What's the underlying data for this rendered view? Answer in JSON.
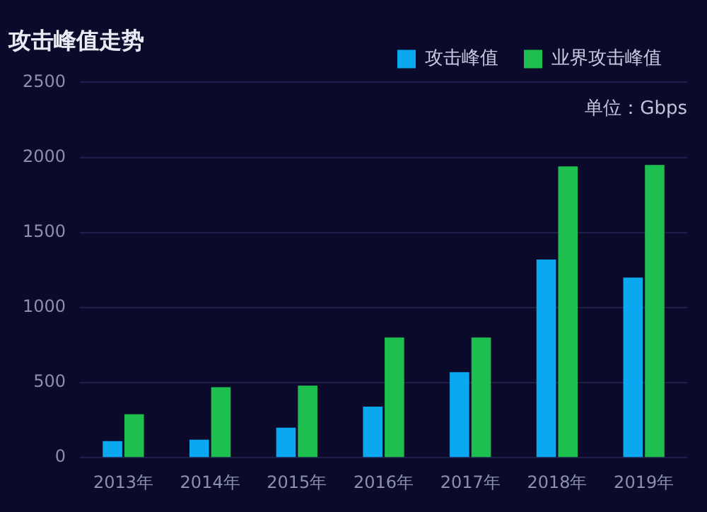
{
  "chart_data": {
    "type": "bar",
    "title": "攻击峰值走势",
    "annotations": [
      "单位：Gbps"
    ],
    "categories": [
      "2013年",
      "2014年",
      "2015年",
      "2016年",
      "2017年",
      "2018年",
      "2019年"
    ],
    "series": [
      {
        "name": "攻击峰值",
        "color": "#0aa8f0",
        "values": [
          110,
          120,
          200,
          340,
          570,
          1320,
          1200
        ]
      },
      {
        "name": "业界攻击峰值",
        "color": "#1dbf4f",
        "values": [
          290,
          470,
          480,
          800,
          800,
          1940,
          1950
        ]
      }
    ],
    "ylim": [
      0,
      2500
    ],
    "yticks": [
      0,
      500,
      1000,
      1500,
      2000,
      2500
    ],
    "grid": "y",
    "legend": "top right"
  }
}
